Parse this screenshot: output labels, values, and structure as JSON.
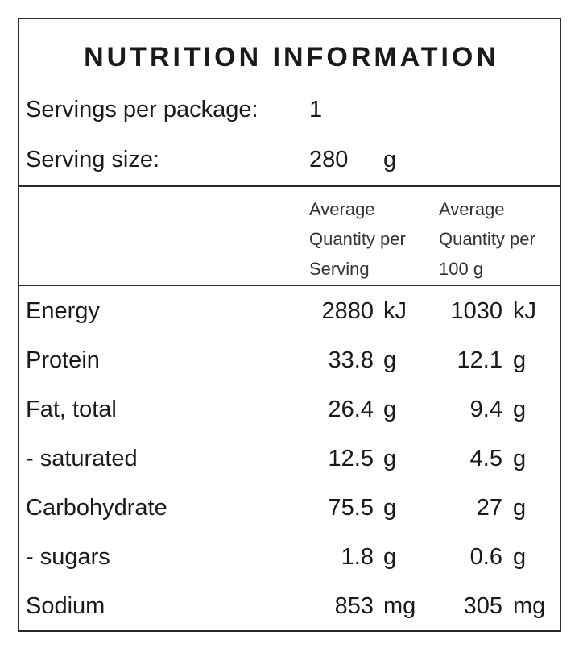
{
  "title": "NUTRITION INFORMATION",
  "servings_per_package": {
    "label": "Servings per package:",
    "value": "1"
  },
  "serving_size": {
    "label": "Serving size:",
    "value": "280",
    "unit": "g"
  },
  "columns": {
    "per_serving": [
      "Average",
      "Quantity per",
      "Serving"
    ],
    "per_100g": [
      "Average",
      "Quantity per",
      "100 g"
    ]
  },
  "rows": [
    {
      "name": "Energy",
      "serving": "2880",
      "serving_unit": "kJ",
      "per100": "1030",
      "per100_unit": "kJ"
    },
    {
      "name": "Protein",
      "serving": "33.8",
      "serving_unit": "g",
      "per100": "12.1",
      "per100_unit": "g"
    },
    {
      "name": "Fat, total",
      "serving": "26.4",
      "serving_unit": "g",
      "per100": "9.4",
      "per100_unit": "g"
    },
    {
      "name": "- saturated",
      "serving": "12.5",
      "serving_unit": "g",
      "per100": "4.5",
      "per100_unit": "g"
    },
    {
      "name": "Carbohydrate",
      "serving": "75.5",
      "serving_unit": "g",
      "per100": "27",
      "per100_unit": "g"
    },
    {
      "name": "- sugars",
      "serving": "1.8",
      "serving_unit": "g",
      "per100": "0.6",
      "per100_unit": "g"
    },
    {
      "name": "Sodium",
      "serving": "853",
      "serving_unit": "mg",
      "per100": "305",
      "per100_unit": "mg"
    }
  ]
}
